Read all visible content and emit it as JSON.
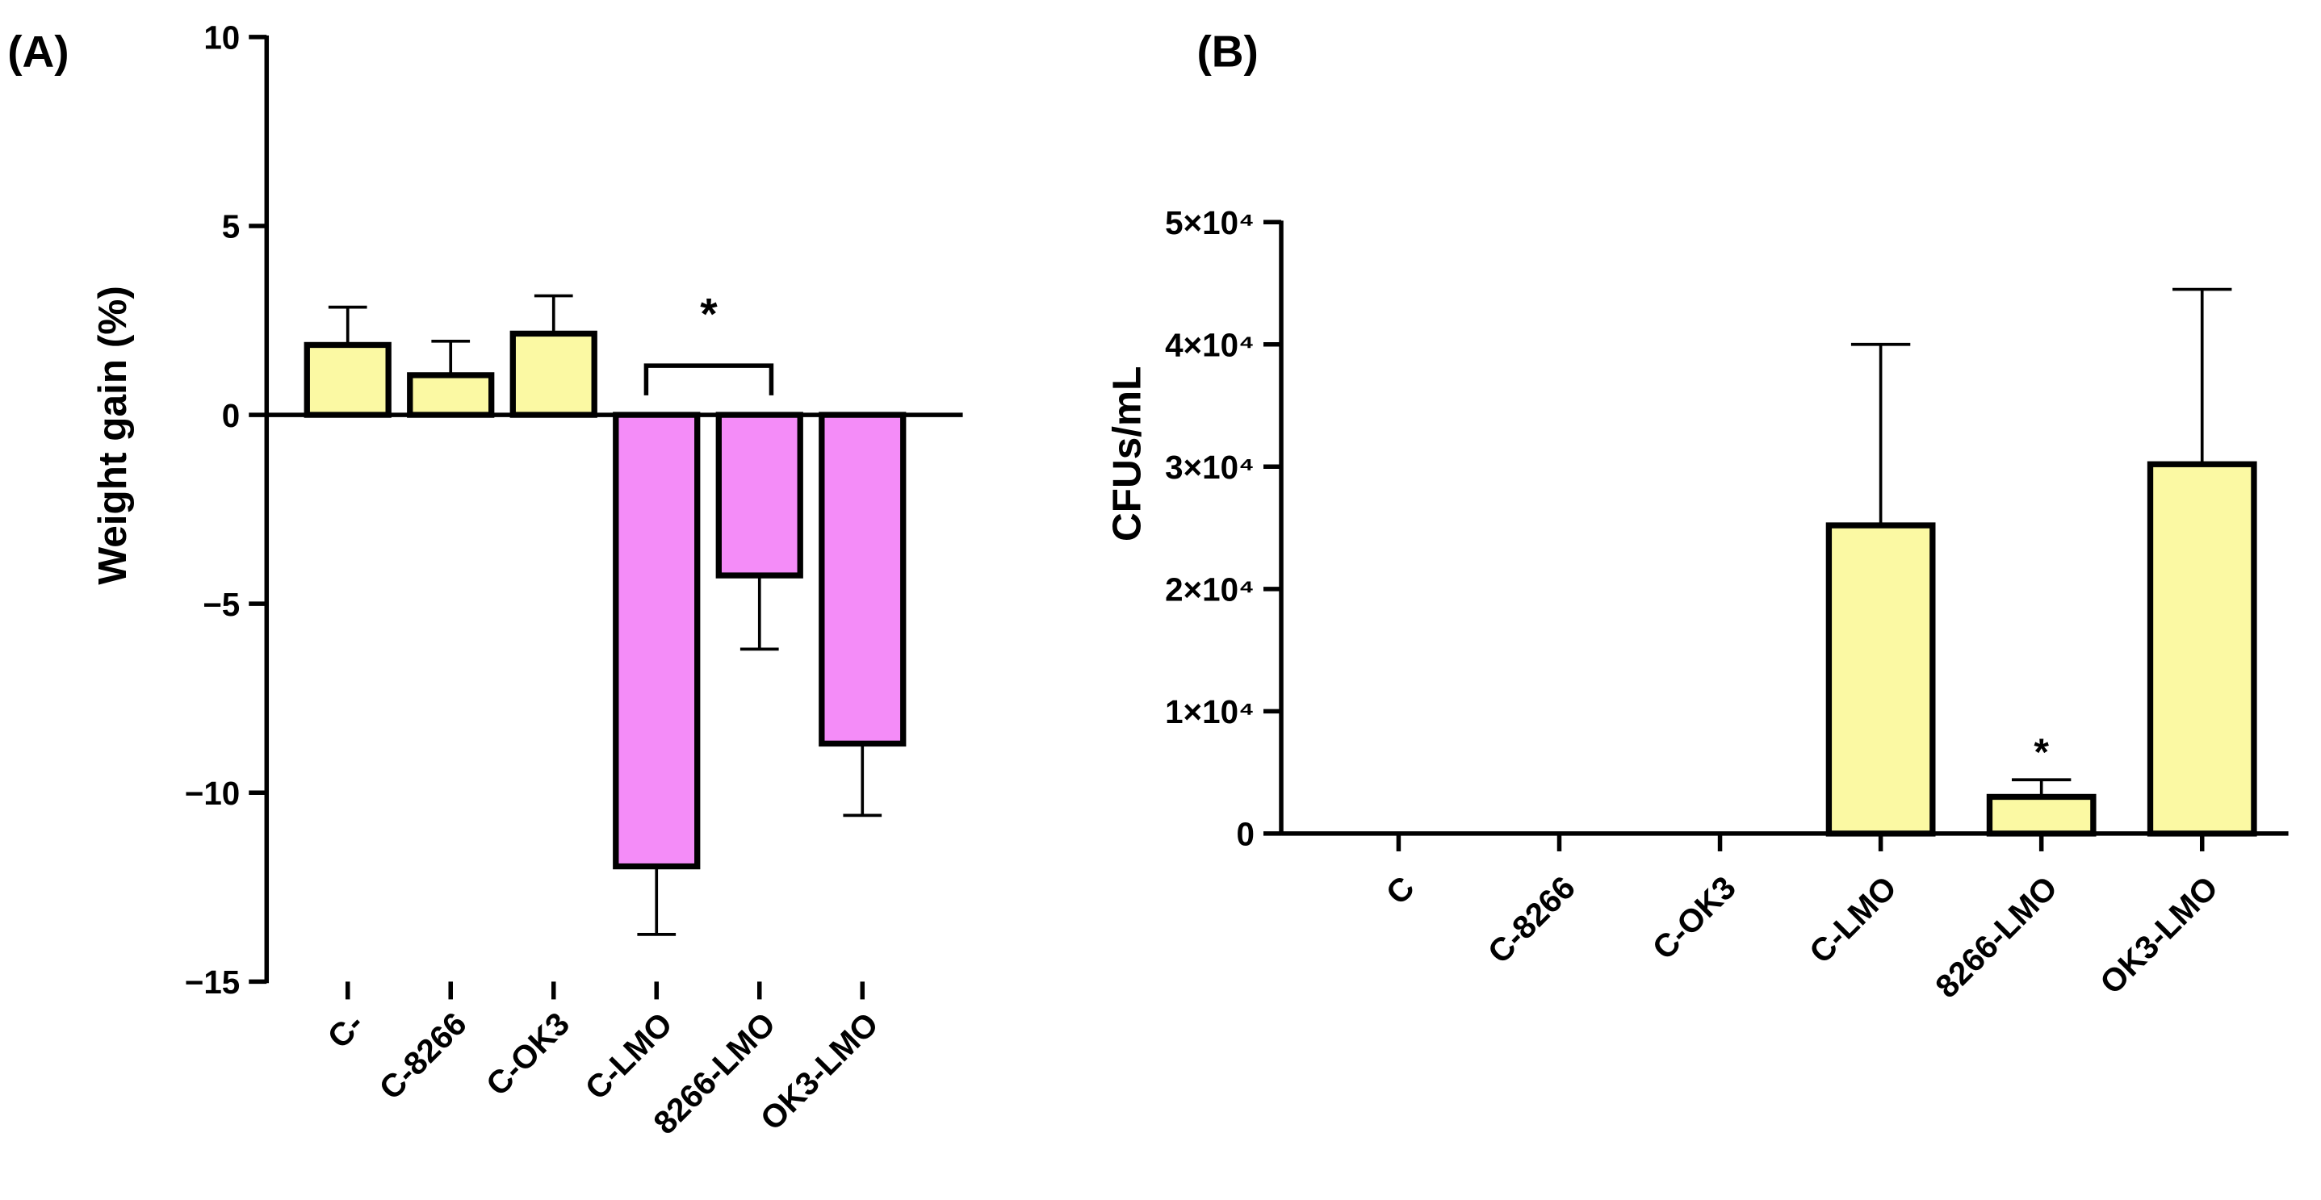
{
  "chart_data": [
    {
      "type": "bar",
      "panel": "(A)",
      "ylabel": "Weight gain (%)",
      "categories": [
        "C-",
        "C-8266",
        "C-OK3",
        "C-LMO",
        "8266-LMO",
        "OK3-LMO"
      ],
      "values": [
        1.85,
        1.05,
        2.15,
        -11.95,
        -4.25,
        -8.7
      ],
      "errors": [
        1.0,
        0.9,
        1.0,
        1.8,
        1.95,
        1.9
      ],
      "colors": [
        "#fbf9a3",
        "#fbf9a3",
        "#fbf9a3",
        "#f48cf8",
        "#f48cf8",
        "#f48cf8"
      ],
      "ylim": [
        -15,
        10
      ],
      "yticks": [
        {
          "value": -15,
          "label": "−15"
        },
        {
          "value": -10,
          "label": "−10"
        },
        {
          "value": -5,
          "label": "−5"
        },
        0,
        5,
        10
      ],
      "significance": "*"
    },
    {
      "type": "bar",
      "panel": "(B)",
      "ylabel": "CFUs/mL",
      "categories": [
        "C",
        "C-8266",
        "C-OK3",
        "C-LMO",
        "8266-LMO",
        "OK3-LMO"
      ],
      "values": [
        0,
        0,
        0,
        25200,
        3000,
        30200
      ],
      "errors": [
        0,
        0,
        0,
        14800,
        1400,
        14300
      ],
      "colors": [
        "#fbf9a3",
        "#fbf9a3",
        "#fbf9a3",
        "#fbf9a3",
        "#fbf9a3",
        "#fbf9a3"
      ],
      "ylim": [
        0,
        50000
      ],
      "yticks": [
        0,
        {
          "value": 10000,
          "label": "1×10⁴"
        },
        {
          "value": 20000,
          "label": "2×10⁴"
        },
        {
          "value": 30000,
          "label": "3×10⁴"
        },
        {
          "value": 40000,
          "label": "4×10⁴"
        },
        {
          "value": 50000,
          "label": "5×10⁴"
        }
      ],
      "significance": "*"
    }
  ]
}
